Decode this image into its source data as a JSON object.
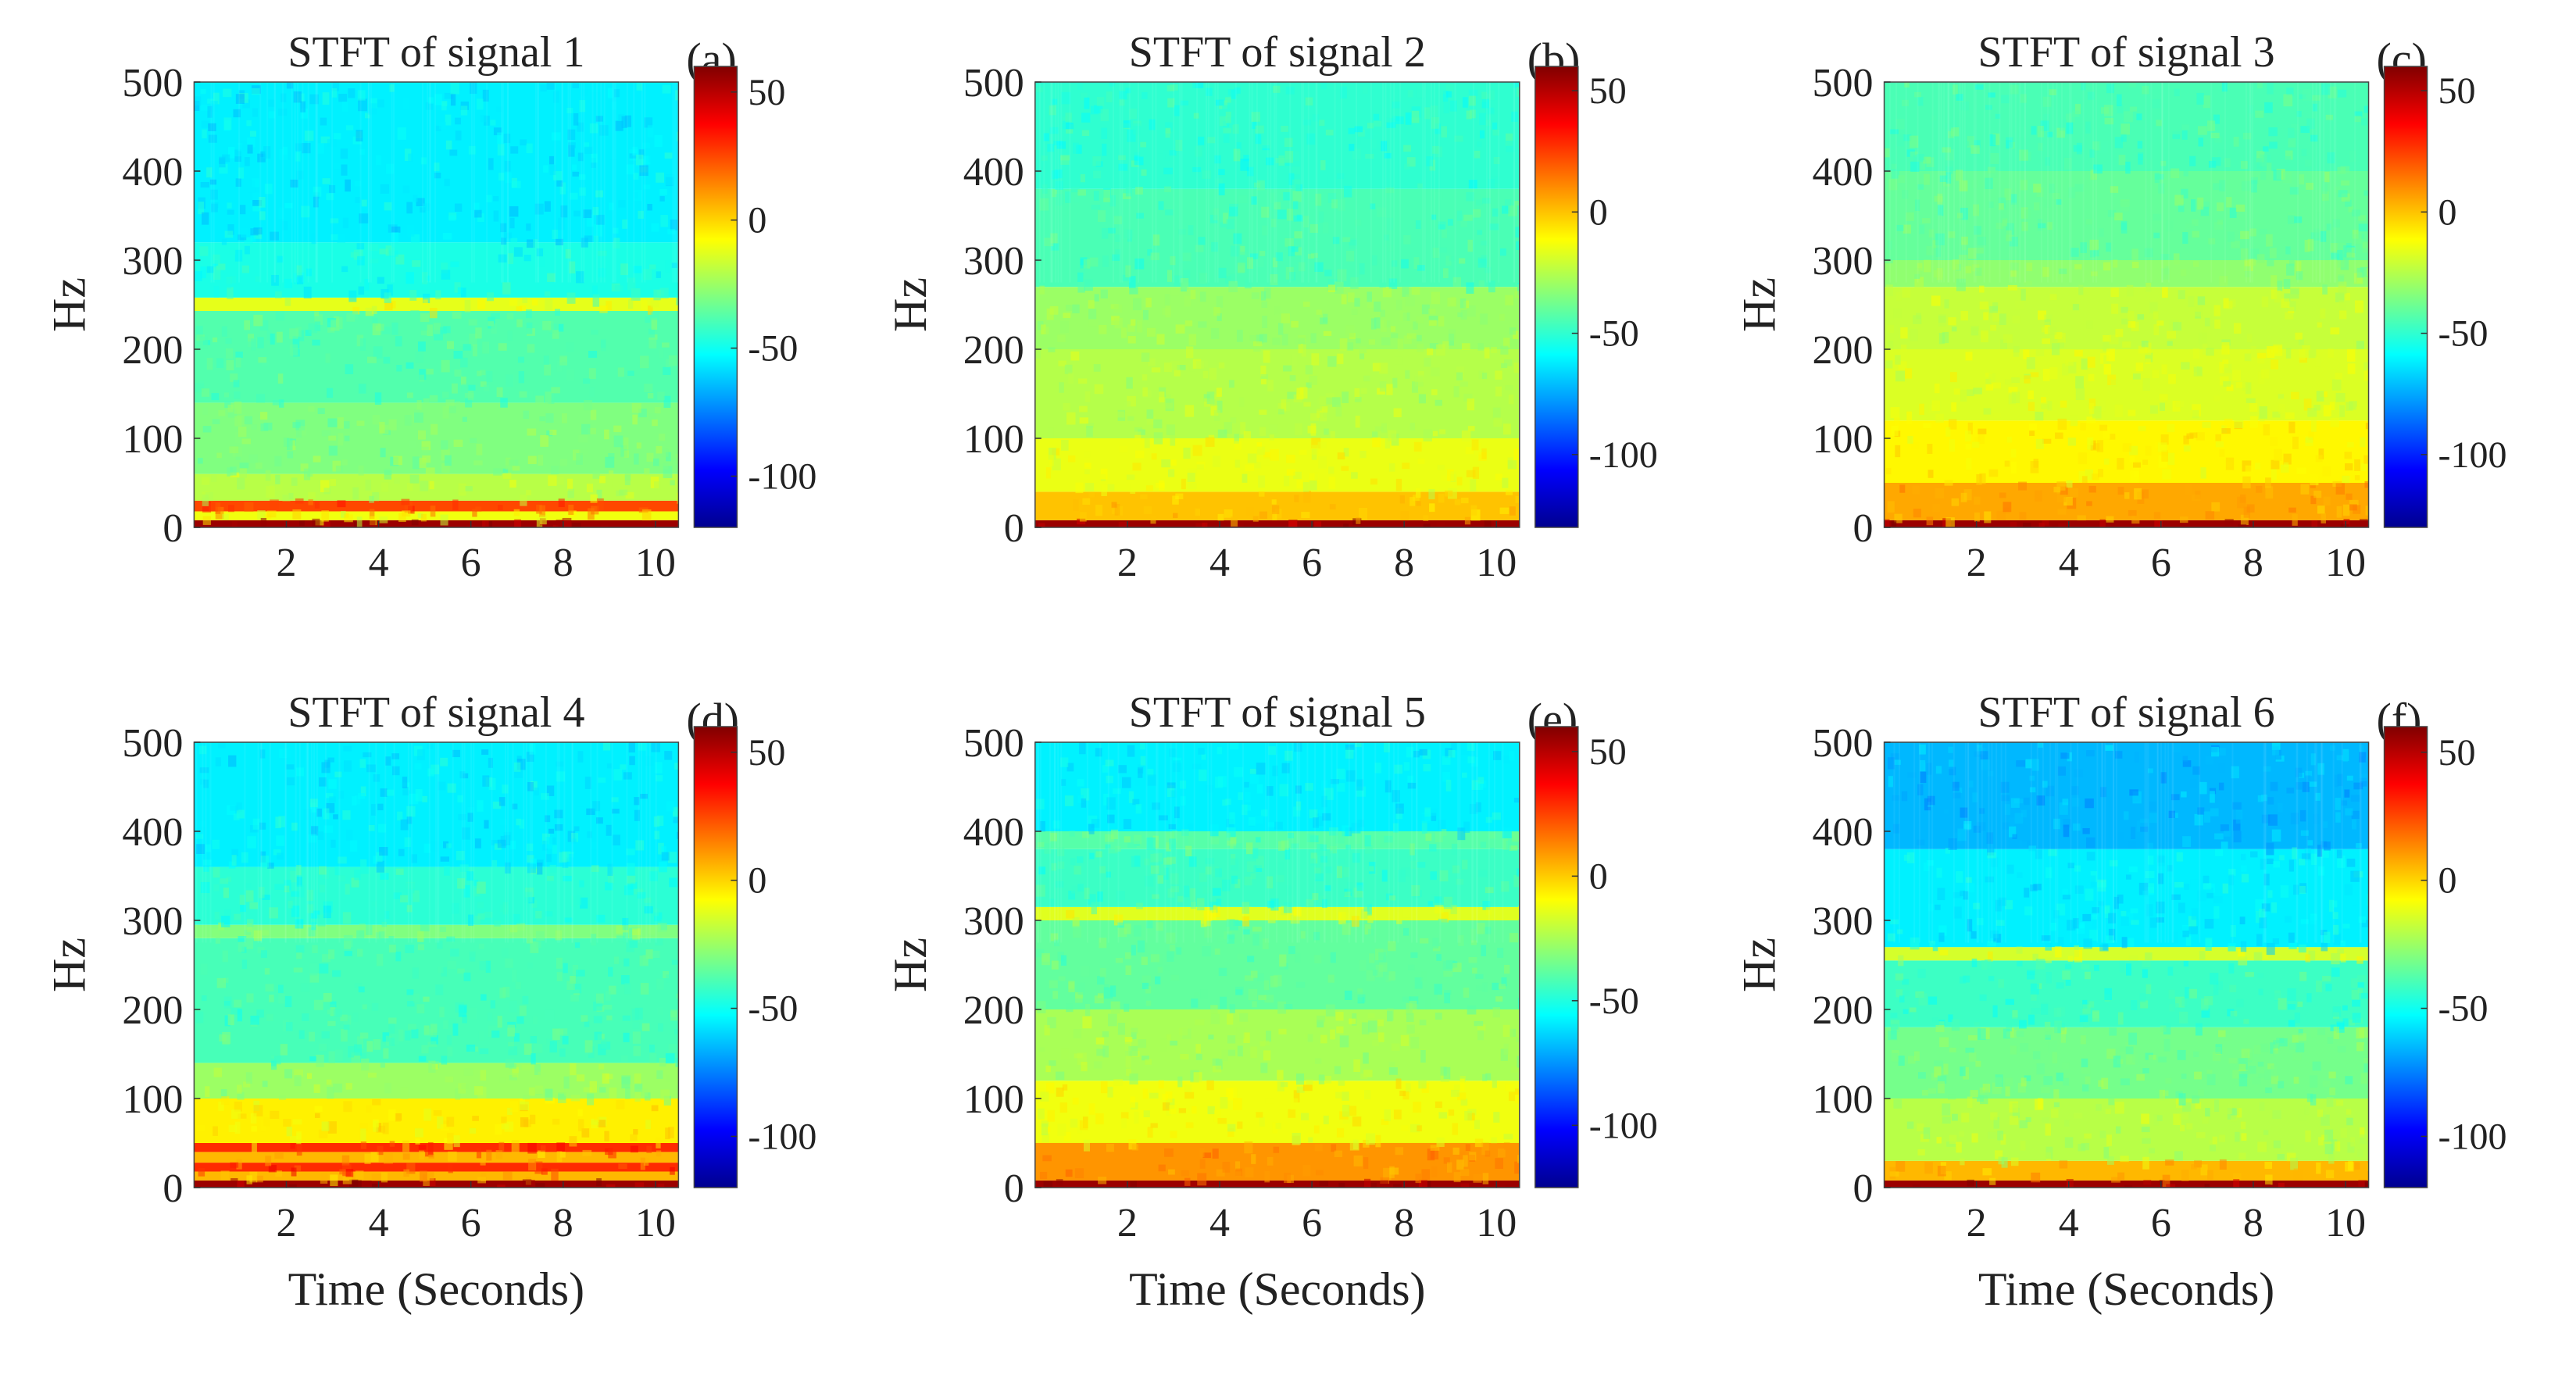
{
  "figure": {
    "xlabel": "Time (Seconds)",
    "ylabel": "Hz"
  },
  "colormap": [
    "#00008f",
    "#0000ff",
    "#0080ff",
    "#00ffff",
    "#80ff80",
    "#ffff00",
    "#ff8000",
    "#ff0000",
    "#800000"
  ],
  "chart_data": [
    {
      "type": "heatmap",
      "panel_label": "(a)",
      "title": "STFT of signal 1",
      "xlabel": "",
      "ylabel": "Hz",
      "xlim": [
        0,
        10.5
      ],
      "ylim": [
        0,
        500
      ],
      "xticks": [
        2,
        4,
        6,
        8,
        10
      ],
      "yticks": [
        0,
        100,
        200,
        300,
        400,
        500
      ],
      "clim": [
        -120,
        60
      ],
      "colorbar_ticks": [
        50,
        0,
        -50,
        -100
      ],
      "bands": [
        {
          "from": 0,
          "to": 8,
          "level": 55
        },
        {
          "from": 8,
          "to": 18,
          "level": -10
        },
        {
          "from": 18,
          "to": 30,
          "level": 25
        },
        {
          "from": 30,
          "to": 60,
          "level": -20
        },
        {
          "from": 60,
          "to": 140,
          "level": -30
        },
        {
          "from": 140,
          "to": 243,
          "level": -38
        },
        {
          "from": 243,
          "to": 258,
          "level": -12
        },
        {
          "from": 258,
          "to": 320,
          "level": -48
        },
        {
          "from": 320,
          "to": 500,
          "level": -55
        }
      ]
    },
    {
      "type": "heatmap",
      "panel_label": "(b)",
      "title": "STFT of signal 2",
      "xlabel": "",
      "ylabel": "Hz",
      "xlim": [
        0,
        10.5
      ],
      "ylim": [
        0,
        500
      ],
      "xticks": [
        2,
        4,
        6,
        8,
        10
      ],
      "yticks": [
        0,
        100,
        200,
        300,
        400,
        500
      ],
      "clim": [
        -130,
        60
      ],
      "colorbar_ticks": [
        50,
        0,
        -50,
        -100
      ],
      "bands": [
        {
          "from": 0,
          "to": 8,
          "level": 55
        },
        {
          "from": 8,
          "to": 40,
          "level": 0
        },
        {
          "from": 40,
          "to": 100,
          "level": -15
        },
        {
          "from": 100,
          "to": 200,
          "level": -25
        },
        {
          "from": 200,
          "to": 270,
          "level": -30
        },
        {
          "from": 270,
          "to": 380,
          "level": -45
        },
        {
          "from": 380,
          "to": 500,
          "level": -50
        }
      ]
    },
    {
      "type": "heatmap",
      "panel_label": "(c)",
      "title": "STFT of signal 3",
      "xlabel": "",
      "ylabel": "Hz",
      "xlim": [
        0,
        10.5
      ],
      "ylim": [
        0,
        500
      ],
      "xticks": [
        2,
        4,
        6,
        8,
        10
      ],
      "yticks": [
        0,
        100,
        200,
        300,
        400,
        500
      ],
      "clim": [
        -130,
        60
      ],
      "colorbar_ticks": [
        50,
        0,
        -50,
        -100
      ],
      "bands": [
        {
          "from": 0,
          "to": 8,
          "level": 55
        },
        {
          "from": 8,
          "to": 50,
          "level": 5
        },
        {
          "from": 50,
          "to": 120,
          "level": -10
        },
        {
          "from": 120,
          "to": 200,
          "level": -18
        },
        {
          "from": 200,
          "to": 270,
          "level": -22
        },
        {
          "from": 270,
          "to": 300,
          "level": -32
        },
        {
          "from": 300,
          "to": 400,
          "level": -40
        },
        {
          "from": 400,
          "to": 500,
          "level": -45
        }
      ]
    },
    {
      "type": "heatmap",
      "panel_label": "(d)",
      "title": "STFT of signal 4",
      "xlabel": "Time (Seconds)",
      "ylabel": "Hz",
      "xlim": [
        0,
        10.5
      ],
      "ylim": [
        0,
        500
      ],
      "xticks": [
        2,
        4,
        6,
        8,
        10
      ],
      "yticks": [
        0,
        100,
        200,
        300,
        400,
        500
      ],
      "clim": [
        -120,
        60
      ],
      "colorbar_ticks": [
        50,
        0,
        -50,
        -100
      ],
      "bands": [
        {
          "from": 0,
          "to": 8,
          "level": 55
        },
        {
          "from": 8,
          "to": 18,
          "level": 5
        },
        {
          "from": 18,
          "to": 28,
          "level": 30
        },
        {
          "from": 28,
          "to": 40,
          "level": 5
        },
        {
          "from": 40,
          "to": 50,
          "level": 30
        },
        {
          "from": 50,
          "to": 100,
          "level": -5
        },
        {
          "from": 100,
          "to": 140,
          "level": -25
        },
        {
          "from": 140,
          "to": 280,
          "level": -40
        },
        {
          "from": 280,
          "to": 295,
          "level": -30
        },
        {
          "from": 295,
          "to": 360,
          "level": -45
        },
        {
          "from": 360,
          "to": 500,
          "level": -55
        }
      ]
    },
    {
      "type": "heatmap",
      "panel_label": "(e)",
      "title": "STFT of signal 5",
      "xlabel": "Time (Seconds)",
      "ylabel": "Hz",
      "xlim": [
        0,
        10.5
      ],
      "ylim": [
        0,
        500
      ],
      "xticks": [
        2,
        4,
        6,
        8,
        10
      ],
      "yticks": [
        0,
        100,
        200,
        300,
        400,
        500
      ],
      "clim": [
        -125,
        60
      ],
      "colorbar_ticks": [
        50,
        0,
        -50,
        -100
      ],
      "bands": [
        {
          "from": 0,
          "to": 8,
          "level": 55
        },
        {
          "from": 8,
          "to": 50,
          "level": 10
        },
        {
          "from": 50,
          "to": 120,
          "level": -12
        },
        {
          "from": 120,
          "to": 200,
          "level": -25
        },
        {
          "from": 200,
          "to": 300,
          "level": -38
        },
        {
          "from": 300,
          "to": 315,
          "level": -15
        },
        {
          "from": 315,
          "to": 380,
          "level": -45
        },
        {
          "from": 380,
          "to": 400,
          "level": -40
        },
        {
          "from": 400,
          "to": 500,
          "level": -58
        }
      ]
    },
    {
      "type": "heatmap",
      "panel_label": "(f)",
      "title": "STFT of signal 6",
      "xlabel": "Time (Seconds)",
      "ylabel": "Hz",
      "xlim": [
        0,
        10.5
      ],
      "ylim": [
        0,
        500
      ],
      "xticks": [
        2,
        4,
        6,
        8,
        10
      ],
      "yticks": [
        0,
        100,
        200,
        300,
        400,
        500
      ],
      "clim": [
        -120,
        60
      ],
      "colorbar_ticks": [
        50,
        0,
        -50,
        -100
      ],
      "bands": [
        {
          "from": 0,
          "to": 8,
          "level": 55
        },
        {
          "from": 8,
          "to": 30,
          "level": 5
        },
        {
          "from": 30,
          "to": 100,
          "level": -20
        },
        {
          "from": 100,
          "to": 180,
          "level": -32
        },
        {
          "from": 180,
          "to": 255,
          "level": -42
        },
        {
          "from": 255,
          "to": 270,
          "level": -15
        },
        {
          "from": 270,
          "to": 380,
          "level": -55
        },
        {
          "from": 380,
          "to": 500,
          "level": -65
        }
      ]
    }
  ]
}
